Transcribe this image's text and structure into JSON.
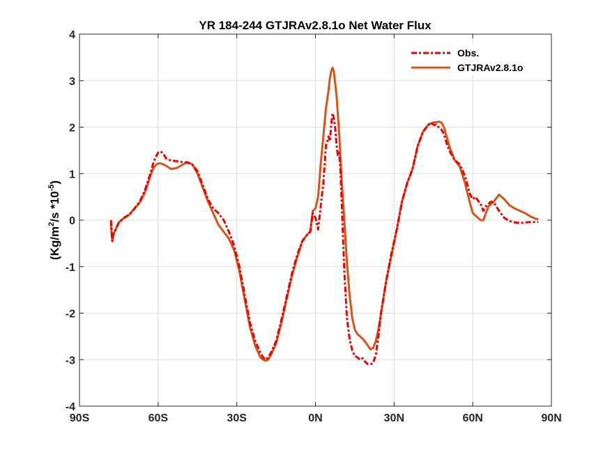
{
  "chart_data": {
    "type": "line",
    "title": "YR 184-244 GTJRAv2.8.1o  Net Water Flux",
    "xlabel": "",
    "ylabel_parts": [
      "(Kg/m",
      "2",
      "/s *10",
      "-5",
      ")"
    ],
    "xlim": [
      -90,
      90
    ],
    "ylim": [
      -4,
      4
    ],
    "xticks": [
      -90,
      -60,
      -30,
      0,
      30,
      60,
      90
    ],
    "xtick_labels": [
      "90S",
      "60S",
      "30S",
      "0N",
      "30N",
      "60N",
      "90N"
    ],
    "yticks": [
      -4,
      -3,
      -2,
      -1,
      0,
      1,
      2,
      3,
      4
    ],
    "ytick_labels": [
      "-4",
      "-3",
      "-2",
      "-1",
      "0",
      "1",
      "2",
      "3",
      "4"
    ],
    "grid": true,
    "legend_position": "top-right",
    "series": [
      {
        "name": "Obs.",
        "color": "#ee0000",
        "style": "dashed",
        "x": [
          -78,
          -77.5,
          -77,
          -75,
          -73,
          -71,
          -69,
          -67,
          -65,
          -63,
          -62,
          -61,
          -60,
          -59,
          -58,
          -57,
          -55,
          -53,
          -51,
          -49,
          -47,
          -45,
          -43,
          -41,
          -39,
          -37,
          -35,
          -33,
          -31,
          -29,
          -27,
          -25,
          -23,
          -21,
          -20,
          -19,
          -18,
          -17,
          -15,
          -13,
          -11,
          -9,
          -7,
          -5,
          -3,
          -2,
          -1,
          0,
          1,
          2,
          3,
          4,
          5,
          5.5,
          6,
          6.5,
          7,
          7.5,
          8,
          8.5,
          9,
          9.5,
          10,
          11,
          12,
          13,
          14,
          15,
          16,
          17,
          18,
          19,
          20,
          21,
          22,
          23,
          24,
          25,
          27,
          29,
          31,
          33,
          35,
          37,
          39,
          41,
          43,
          44,
          45,
          46,
          47,
          48,
          49,
          50,
          51,
          53,
          55,
          57,
          59,
          60,
          61,
          62,
          63,
          64,
          65,
          66,
          67,
          68,
          70,
          72,
          74,
          76,
          78,
          80,
          82,
          84,
          85
        ],
        "y": [
          0.0,
          -0.45,
          -0.3,
          -0.05,
          0.05,
          0.12,
          0.25,
          0.4,
          0.65,
          1.0,
          1.2,
          1.35,
          1.45,
          1.48,
          1.42,
          1.33,
          1.28,
          1.27,
          1.25,
          1.24,
          1.2,
          1.05,
          0.75,
          0.45,
          0.25,
          0.15,
          0.0,
          -0.25,
          -0.55,
          -1.0,
          -1.6,
          -2.2,
          -2.6,
          -2.85,
          -2.95,
          -3.0,
          -2.95,
          -2.85,
          -2.6,
          -2.15,
          -1.65,
          -1.15,
          -0.75,
          -0.45,
          -0.3,
          -0.25,
          0.15,
          0.05,
          -0.2,
          0.3,
          0.8,
          1.6,
          1.8,
          1.7,
          2.05,
          2.3,
          2.2,
          2.0,
          1.65,
          1.4,
          1.45,
          1.1,
          0.4,
          -1.1,
          -2.1,
          -2.55,
          -2.8,
          -2.92,
          -2.95,
          -3.0,
          -2.97,
          -3.05,
          -3.1,
          -3.1,
          -3.07,
          -2.9,
          -2.5,
          -2.0,
          -1.3,
          -0.7,
          -0.2,
          0.4,
          0.8,
          1.1,
          1.6,
          1.9,
          2.05,
          2.1,
          2.05,
          2.05,
          2.0,
          1.95,
          1.85,
          1.65,
          1.5,
          1.3,
          1.2,
          0.95,
          0.55,
          0.45,
          0.5,
          0.42,
          0.35,
          0.2,
          0.3,
          0.35,
          0.4,
          0.38,
          0.2,
          0.05,
          -0.02,
          -0.05,
          -0.06,
          -0.05,
          -0.04,
          -0.04,
          -0.04
        ]
      },
      {
        "name": "GTJRAv2.8.1o",
        "color": "#d95319",
        "style": "solid",
        "x": [
          -78,
          -77.5,
          -77,
          -75,
          -73,
          -71,
          -69,
          -67,
          -65,
          -63,
          -62,
          -61,
          -60,
          -59,
          -58,
          -57,
          -55,
          -53,
          -51,
          -49,
          -47,
          -45,
          -43,
          -41,
          -39,
          -37,
          -35,
          -33,
          -31,
          -29,
          -27,
          -25,
          -23,
          -21,
          -20,
          -19,
          -18,
          -17,
          -15,
          -13,
          -11,
          -9,
          -7,
          -5,
          -3,
          -2,
          -1,
          0,
          1,
          2,
          3,
          4,
          5,
          5.5,
          6,
          6.5,
          7,
          7.5,
          8,
          8.5,
          9,
          9.5,
          10,
          11,
          12,
          13,
          14,
          15,
          16,
          17,
          18,
          19,
          20,
          21,
          22,
          23,
          24,
          25,
          27,
          29,
          31,
          33,
          35,
          37,
          39,
          41,
          43,
          44,
          45,
          46,
          47,
          48,
          49,
          50,
          51,
          53,
          55,
          57,
          59,
          60,
          61,
          62,
          63,
          64,
          65,
          66,
          67,
          68,
          70,
          72,
          74,
          76,
          78,
          80,
          82,
          84,
          85
        ],
        "y": [
          -0.1,
          -0.45,
          -0.3,
          -0.05,
          0.05,
          0.12,
          0.25,
          0.38,
          0.6,
          0.95,
          1.1,
          1.18,
          1.22,
          1.22,
          1.2,
          1.17,
          1.1,
          1.12,
          1.18,
          1.25,
          1.2,
          1.0,
          0.7,
          0.4,
          0.15,
          -0.1,
          -0.25,
          -0.4,
          -0.65,
          -1.1,
          -1.7,
          -2.3,
          -2.7,
          -2.95,
          -3.0,
          -3.02,
          -3.0,
          -2.9,
          -2.65,
          -2.2,
          -1.7,
          -1.2,
          -0.8,
          -0.45,
          -0.3,
          -0.25,
          0.2,
          0.25,
          0.5,
          1.2,
          1.8,
          2.4,
          2.8,
          3.05,
          3.2,
          3.28,
          3.2,
          2.95,
          2.7,
          2.3,
          1.9,
          1.4,
          0.85,
          0.0,
          -0.9,
          -1.6,
          -2.1,
          -2.35,
          -2.45,
          -2.5,
          -2.55,
          -2.62,
          -2.7,
          -2.78,
          -2.75,
          -2.6,
          -2.35,
          -2.0,
          -1.3,
          -0.75,
          -0.2,
          0.4,
          0.8,
          1.1,
          1.6,
          1.9,
          2.05,
          2.08,
          2.1,
          2.1,
          2.12,
          2.1,
          2.0,
          1.8,
          1.6,
          1.3,
          1.15,
          0.8,
          0.35,
          0.15,
          0.1,
          0.05,
          0.0,
          0.0,
          0.15,
          0.3,
          0.35,
          0.4,
          0.55,
          0.45,
          0.32,
          0.25,
          0.2,
          0.15,
          0.08,
          0.03,
          0.02
        ]
      }
    ]
  }
}
